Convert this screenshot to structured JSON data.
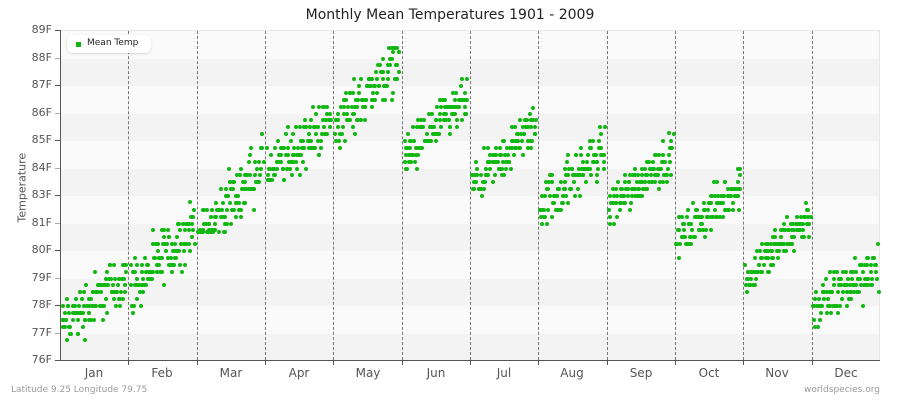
{
  "chart": {
    "title": "Monthly Mean Temperatures 1901 - 2009",
    "ylabel": "Temperature",
    "legend_label": "Mean Temp",
    "dot_color": "#11b711",
    "footer_left": "Latitude 9.25 Longitude 79.75",
    "footer_right": "worldspecies.org"
  },
  "chart_data": {
    "type": "scatter",
    "title": "Monthly Mean Temperatures 1901 - 2009",
    "xlabel": "",
    "ylabel": "Temperature",
    "y_tick_labels": [
      "89F",
      "88F",
      "87F",
      "86F",
      "85F",
      "84F",
      "83F",
      "81F",
      "80F",
      "79F",
      "78F",
      "77F",
      "76F"
    ],
    "categories": [
      "Jan",
      "Feb",
      "Mar",
      "Apr",
      "May",
      "Jun",
      "Jul",
      "Aug",
      "Sep",
      "Oct",
      "Nov",
      "Dec"
    ],
    "years": [
      1901,
      2009
    ],
    "legend": [
      "Mean Temp"
    ],
    "legend_position": "top-left",
    "grid": "horizontal bands, dashed month dividers",
    "series": [
      {
        "name": "Mean Temp",
        "note": "One point per year per month; values are approximate axis positions (tick index units, 0 = 76F bottom, 12 = 89F top). start/end = approx trend center at 1901 and 2009, spread = ± scatter.",
        "months": [
          {
            "month": "Jan",
            "start": 1.3,
            "end": 3.1,
            "spread": 0.9,
            "min": 0.5,
            "max": 3.9
          },
          {
            "month": "Feb",
            "start": 2.6,
            "end": 4.9,
            "spread": 0.9,
            "min": 1.4,
            "max": 5.8
          },
          {
            "month": "Mar",
            "start": 4.4,
            "end": 7.2,
            "spread": 0.9,
            "min": 4.7,
            "max": 8.9
          },
          {
            "month": "Apr",
            "start": 6.7,
            "end": 8.8,
            "spread": 0.9,
            "min": 6.6,
            "max": 9.8
          },
          {
            "month": "May",
            "start": 8.5,
            "end": 11.0,
            "spread": 0.9,
            "min": 6.8,
            "max": 11.4
          },
          {
            "month": "Jun",
            "start": 7.4,
            "end": 9.5,
            "spread": 0.8,
            "min": 6.6,
            "max": 10.6
          },
          {
            "month": "Jul",
            "start": 6.3,
            "end": 8.6,
            "spread": 0.7,
            "min": 5.6,
            "max": 9.2
          },
          {
            "month": "Aug",
            "start": 5.6,
            "end": 7.7,
            "spread": 0.8,
            "min": 4.6,
            "max": 8.9
          },
          {
            "month": "Sep",
            "start": 5.6,
            "end": 7.6,
            "spread": 0.7,
            "min": 4.8,
            "max": 8.3
          },
          {
            "month": "Oct",
            "start": 4.4,
            "end": 6.4,
            "spread": 0.7,
            "min": 3.6,
            "max": 7.2
          },
          {
            "month": "Nov",
            "start": 3.0,
            "end": 5.3,
            "spread": 0.7,
            "min": 2.5,
            "max": 6.1
          },
          {
            "month": "Dec",
            "start": 1.9,
            "end": 3.5,
            "spread": 0.8,
            "min": 0.5,
            "max": 5.3
          }
        ]
      }
    ]
  }
}
